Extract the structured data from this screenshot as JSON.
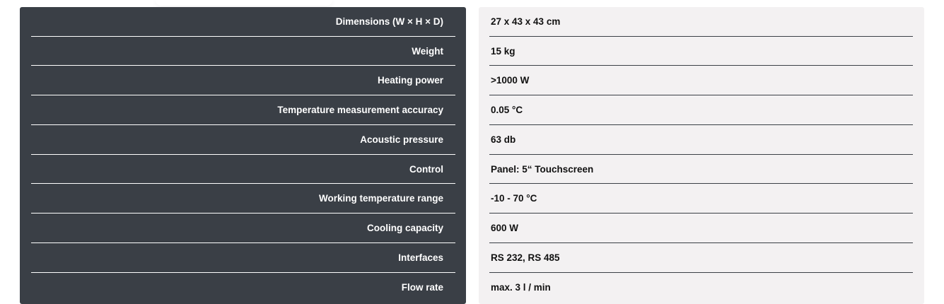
{
  "specs": [
    {
      "label": "Dimensions (W × H × D)",
      "value": "27 x 43 x 43 cm"
    },
    {
      "label": "Weight",
      "value": "15 kg"
    },
    {
      "label": "Heating power",
      "value": ">1000 W"
    },
    {
      "label": "Temperature measurement accuracy",
      "value": "0.05 °C"
    },
    {
      "label": "Acoustic pressure",
      "value": "63 db"
    },
    {
      "label": "Control",
      "value": "Panel: 5“ Touchscreen"
    },
    {
      "label": "Working temperature range",
      "value": "-10 - 70 °C"
    },
    {
      "label": "Cooling capacity",
      "value": "600 W"
    },
    {
      "label": "Interfaces",
      "value": "RS 232, RS 485"
    },
    {
      "label": "Flow rate",
      "value": "max. 3 l / min"
    }
  ],
  "colors": {
    "label_bg": "#3a3f46",
    "value_bg": "#f3f1f2"
  }
}
